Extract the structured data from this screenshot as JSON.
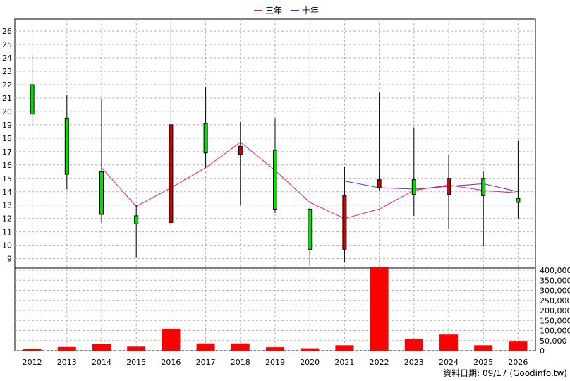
{
  "chart_data": {
    "type": "candlestick",
    "legend": [
      {
        "name": "三年",
        "color": "#e0226f"
      },
      {
        "name": "十年",
        "color": "#7a1fc8"
      }
    ],
    "footer": "資料日期: 09/17  (Goodinfo.tw)",
    "x": [
      "2012",
      "2013",
      "2014",
      "2015",
      "2016",
      "2017",
      "2018",
      "2019",
      "2020",
      "2021",
      "2022",
      "2023",
      "2024",
      "2025",
      "2026"
    ],
    "price_axis": {
      "min": 8.4,
      "max": 26.9,
      "ticks": [
        9,
        10,
        11,
        12,
        13,
        14,
        15,
        16,
        17,
        18,
        19,
        20,
        21,
        22,
        23,
        24,
        25,
        26
      ]
    },
    "candles": [
      {
        "open": 19.8,
        "close": 22.0,
        "high": 24.3,
        "low": 19.0
      },
      {
        "open": 15.3,
        "close": 19.5,
        "high": 21.2,
        "low": 14.2
      },
      {
        "open": 12.3,
        "close": 15.5,
        "high": 20.9,
        "low": 11.7
      },
      {
        "open": 11.6,
        "close": 12.2,
        "high": 13.0,
        "low": 9.1
      },
      {
        "open": 19.0,
        "close": 11.7,
        "high": 26.7,
        "low": 11.4
      },
      {
        "open": 16.9,
        "close": 19.1,
        "high": 21.8,
        "low": 15.8
      },
      {
        "open": 17.4,
        "close": 16.8,
        "high": 19.2,
        "low": 13.0
      },
      {
        "open": 12.7,
        "close": 17.1,
        "high": 19.5,
        "low": 12.4
      },
      {
        "open": 9.7,
        "close": 12.7,
        "high": 12.8,
        "low": 8.5
      },
      {
        "open": 13.7,
        "close": 9.7,
        "high": 15.9,
        "low": 8.7
      },
      {
        "open": 14.9,
        "close": 14.3,
        "high": 21.4,
        "low": 14.1
      },
      {
        "open": 13.8,
        "close": 14.9,
        "high": 18.8,
        "low": 12.2
      },
      {
        "open": 15.0,
        "close": 13.8,
        "high": 16.8,
        "low": 11.2
      },
      {
        "open": 13.7,
        "close": 15.0,
        "high": 15.5,
        "low": 9.9
      },
      {
        "open": 13.2,
        "close": 13.5,
        "high": 17.8,
        "low": 12.0
      }
    ],
    "series": [
      {
        "name": "三年",
        "values": [
          null,
          null,
          15.8,
          12.9,
          14.3,
          15.8,
          17.7,
          15.6,
          13.2,
          12.0,
          12.7,
          14.1,
          14.5,
          14.1,
          13.9
        ]
      },
      {
        "name": "十年",
        "values": [
          null,
          null,
          null,
          null,
          null,
          null,
          null,
          null,
          null,
          14.8,
          14.3,
          14.2,
          14.4,
          14.6,
          14.0
        ]
      }
    ],
    "volume_axis": {
      "min": 0,
      "max": 400000,
      "ticks": [
        0,
        50000,
        100000,
        150000,
        200000,
        250000,
        300000,
        350000,
        400000
      ],
      "tick_labels": [
        "0",
        "50,000",
        "100,000",
        "150,000",
        "200,000",
        "250,000",
        "300,000",
        "350,000",
        "400,000"
      ]
    },
    "volume": [
      8000,
      18000,
      33000,
      20000,
      108000,
      36000,
      36000,
      17000,
      12000,
      27000,
      415000,
      58000,
      80000,
      27000,
      45000
    ]
  }
}
